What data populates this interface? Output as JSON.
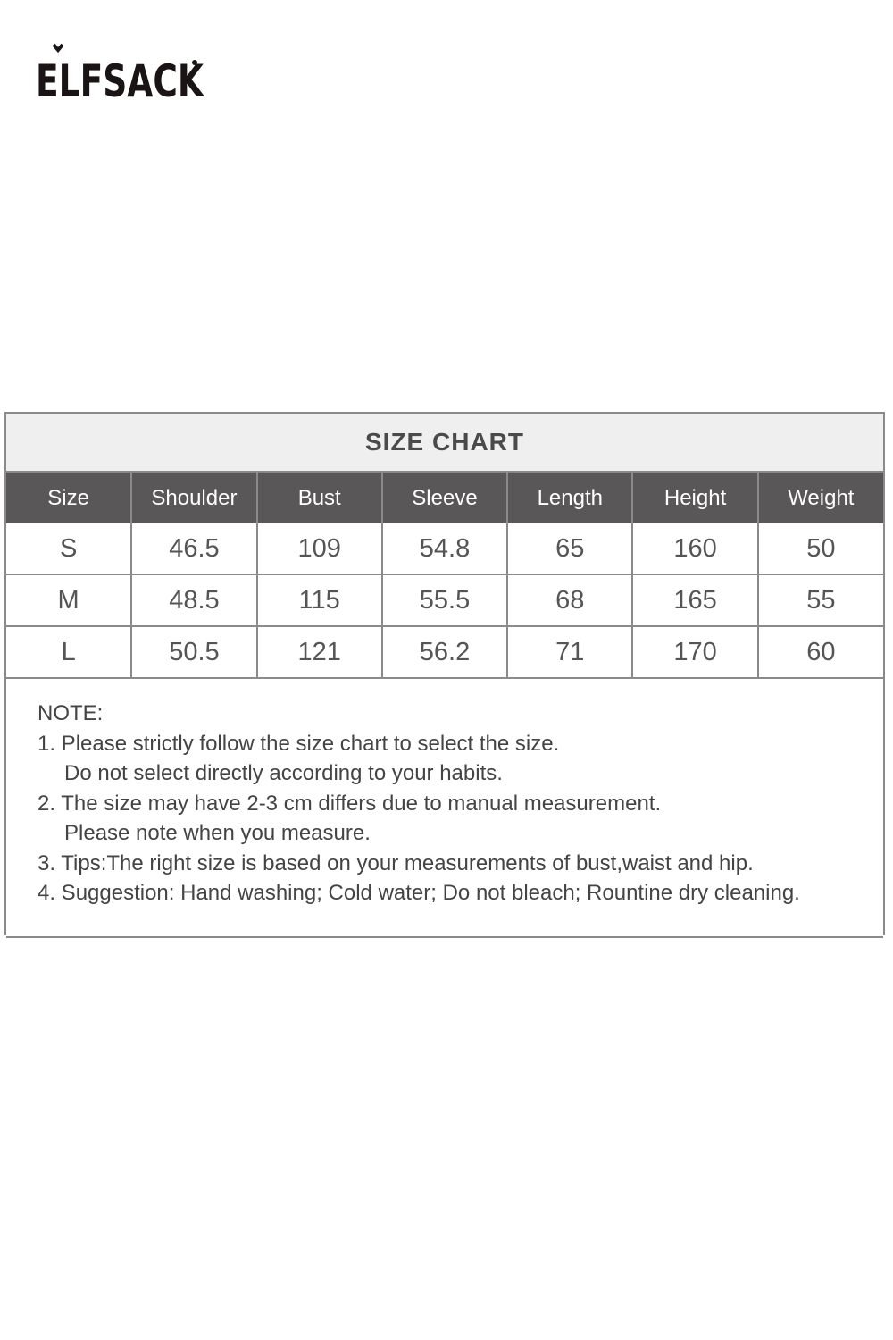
{
  "brand": {
    "logo_text": "ELFSACK"
  },
  "size_chart": {
    "title": "SIZE CHART",
    "columns": [
      "Size",
      "Shoulder",
      "Bust",
      "Sleeve",
      "Length",
      "Height",
      "Weight"
    ],
    "rows": [
      [
        "S",
        "46.5",
        "109",
        "54.8",
        "65",
        "160",
        "50"
      ],
      [
        "M",
        "48.5",
        "115",
        "55.5",
        "68",
        "165",
        "55"
      ],
      [
        "L",
        "50.5",
        "121",
        "56.2",
        "71",
        "170",
        "60"
      ]
    ],
    "header_color": "#595757",
    "title_background": "#efefef"
  },
  "notes": {
    "heading": "NOTE:",
    "lines": [
      "1. Please strictly follow the size chart to select the size.",
      "Do not select directly according to your habits.",
      "2. The size may have 2-3 cm differs due to manual measurement.",
      "Please note when you measure.",
      "3. Tips:The right size is based on your measurements of bust,waist and hip.",
      "4. Suggestion: Hand washing; Cold water; Do not bleach; Rountine dry cleaning."
    ]
  }
}
